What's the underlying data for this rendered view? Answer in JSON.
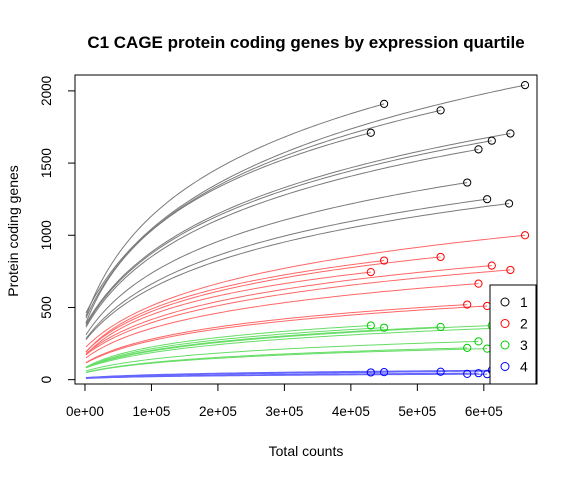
{
  "chart_data": {
    "type": "line",
    "title": "C1 CAGE protein coding genes by expression quartile",
    "xlabel": "Total counts",
    "ylabel": "Protein coding genes",
    "xlim": [
      -15000,
      680000
    ],
    "ylim": [
      -30,
      2110
    ],
    "x_ticks": [
      0,
      100000,
      200000,
      300000,
      400000,
      500000,
      600000
    ],
    "x_tick_labels": [
      "0e+00",
      "1e+05",
      "2e+05",
      "3e+05",
      "4e+05",
      "5e+05",
      "6e+05"
    ],
    "y_ticks": [
      0,
      500,
      1000,
      1500,
      2000
    ],
    "y_tick_labels": [
      "0",
      "500",
      "1000",
      "1500",
      "2000"
    ],
    "legend_position": "bottom-right",
    "series": [
      {
        "name": "1",
        "color": "#000000",
        "line_color": "#7a7a7a",
        "endpoints": [
          {
            "x": 662000,
            "y": 2040
          },
          {
            "x": 450000,
            "y": 1910
          },
          {
            "x": 535000,
            "y": 1865
          },
          {
            "x": 640000,
            "y": 1705
          },
          {
            "x": 430000,
            "y": 1710
          },
          {
            "x": 612000,
            "y": 1655
          },
          {
            "x": 592000,
            "y": 1595
          },
          {
            "x": 575000,
            "y": 1365
          },
          {
            "x": 605000,
            "y": 1250
          },
          {
            "x": 638000,
            "y": 1220
          }
        ]
      },
      {
        "name": "2",
        "color": "#ff0000",
        "line_color": "#ff6666",
        "endpoints": [
          {
            "x": 662000,
            "y": 1000
          },
          {
            "x": 450000,
            "y": 825
          },
          {
            "x": 535000,
            "y": 850
          },
          {
            "x": 612000,
            "y": 790
          },
          {
            "x": 640000,
            "y": 760
          },
          {
            "x": 430000,
            "y": 745
          },
          {
            "x": 592000,
            "y": 665
          },
          {
            "x": 575000,
            "y": 520
          },
          {
            "x": 605000,
            "y": 510
          }
        ]
      },
      {
        "name": "3",
        "color": "#00cd00",
        "line_color": "#66dd66",
        "endpoints": [
          {
            "x": 430000,
            "y": 375
          },
          {
            "x": 450000,
            "y": 360
          },
          {
            "x": 535000,
            "y": 365
          },
          {
            "x": 612000,
            "y": 375
          },
          {
            "x": 640000,
            "y": 360
          },
          {
            "x": 592000,
            "y": 265
          },
          {
            "x": 575000,
            "y": 220
          },
          {
            "x": 605000,
            "y": 215
          }
        ]
      },
      {
        "name": "4",
        "color": "#0000ff",
        "line_color": "#6666ff",
        "endpoints": [
          {
            "x": 430000,
            "y": 50
          },
          {
            "x": 450000,
            "y": 52
          },
          {
            "x": 535000,
            "y": 55
          },
          {
            "x": 575000,
            "y": 40
          },
          {
            "x": 592000,
            "y": 45
          },
          {
            "x": 605000,
            "y": 38
          },
          {
            "x": 612000,
            "y": 65
          },
          {
            "x": 640000,
            "y": 60
          }
        ]
      }
    ]
  }
}
